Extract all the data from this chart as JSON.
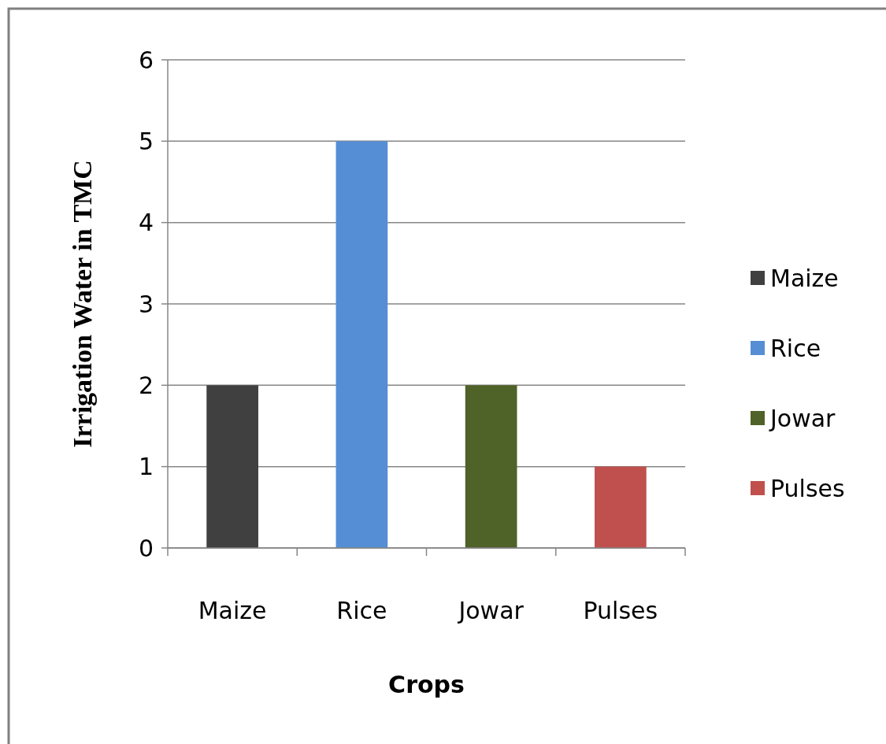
{
  "chart_data": {
    "type": "bar",
    "xlabel": "Crops",
    "ylabel": "Irrigation Water in TMC",
    "categories": [
      "Maize",
      "Rice",
      "Jowar",
      "Pulses"
    ],
    "series": [
      {
        "name": "Maize",
        "color": "#404040",
        "values": [
          2,
          null,
          null,
          null
        ]
      },
      {
        "name": "Rice",
        "color": "#558ed5",
        "values": [
          null,
          5,
          null,
          null
        ]
      },
      {
        "name": "Jowar",
        "color": "#4f6228",
        "values": [
          null,
          null,
          2,
          null
        ]
      },
      {
        "name": "Pulses",
        "color": "#c0504d",
        "values": [
          null,
          null,
          null,
          1
        ]
      }
    ],
    "stacked": true,
    "ylim": [
      0,
      6
    ],
    "yticks": [
      0,
      1,
      2,
      3,
      4,
      5,
      6
    ],
    "grid": "y",
    "legend": "right"
  }
}
